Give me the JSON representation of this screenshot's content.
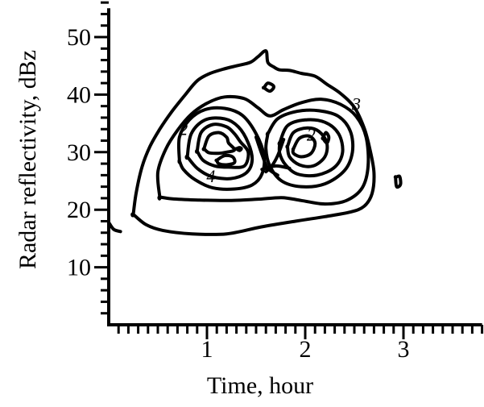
{
  "chart_data": {
    "type": "contour",
    "xlabel": "Time, hour",
    "ylabel": "Radar reflectivity, dBz",
    "xlim": [
      0,
      3.8
    ],
    "ylim": [
      0,
      55
    ],
    "x_ticks": [
      {
        "value": 1,
        "label": "1"
      },
      {
        "value": 2,
        "label": "2"
      },
      {
        "value": 3,
        "label": "3"
      }
    ],
    "y_ticks": [
      {
        "value": 10,
        "label": "10"
      },
      {
        "value": 20,
        "label": "20"
      },
      {
        "value": 30,
        "label": "30"
      },
      {
        "value": 40,
        "label": "40"
      },
      {
        "value": 50,
        "label": "50"
      }
    ],
    "x_minor_step": 0.1,
    "y_minor_step": 2,
    "contour_labels": [
      {
        "text": "2",
        "x": 0.76,
        "y": 33.0
      },
      {
        "text": "4",
        "x": 1.04,
        "y": 24.8
      },
      {
        "text": "2",
        "x": 2.06,
        "y": 32.0
      },
      {
        "text": "3",
        "x": 2.52,
        "y": 37.3
      }
    ],
    "contours": [
      {
        "name": "outer",
        "closed": true,
        "points": [
          [
            0.25,
            19.2
          ],
          [
            0.28,
            23
          ],
          [
            0.34,
            27.5
          ],
          [
            0.42,
            31
          ],
          [
            0.52,
            34
          ],
          [
            0.64,
            37
          ],
          [
            0.78,
            40
          ],
          [
            0.9,
            42.4
          ],
          [
            1.02,
            43.6
          ],
          [
            1.16,
            44.4
          ],
          [
            1.3,
            45
          ],
          [
            1.44,
            45.6
          ],
          [
            1.52,
            46.6
          ],
          [
            1.6,
            47.6
          ],
          [
            1.62,
            45.6
          ],
          [
            1.68,
            44.8
          ],
          [
            1.74,
            44.3
          ],
          [
            1.84,
            44.2
          ],
          [
            1.96,
            43.7
          ],
          [
            2.1,
            43.2
          ],
          [
            2.22,
            41.8
          ],
          [
            2.36,
            40.2
          ],
          [
            2.5,
            37.8
          ],
          [
            2.6,
            34.2
          ],
          [
            2.66,
            30.4
          ],
          [
            2.7,
            26.4
          ],
          [
            2.68,
            22.8
          ],
          [
            2.6,
            20.6
          ],
          [
            2.46,
            19.6
          ],
          [
            2.2,
            18.8
          ],
          [
            1.9,
            18
          ],
          [
            1.55,
            17
          ],
          [
            1.2,
            15.8
          ],
          [
            0.85,
            15.8
          ],
          [
            0.55,
            16.4
          ],
          [
            0.38,
            17.4
          ],
          [
            0.25,
            19.2
          ]
        ]
      },
      {
        "name": "level-2",
        "closed": true,
        "points": [
          [
            0.52,
            22.2
          ],
          [
            0.5,
            26.5
          ],
          [
            0.58,
            30.5
          ],
          [
            0.7,
            33.8
          ],
          [
            0.84,
            36.6
          ],
          [
            1.0,
            38.5
          ],
          [
            1.18,
            39.6
          ],
          [
            1.38,
            39.3
          ],
          [
            1.52,
            37.7
          ],
          [
            1.64,
            36.3
          ],
          [
            1.78,
            37.4
          ],
          [
            1.96,
            38.6
          ],
          [
            2.16,
            39.2
          ],
          [
            2.36,
            38.3
          ],
          [
            2.52,
            36.2
          ],
          [
            2.62,
            32.6
          ],
          [
            2.64,
            27.6
          ],
          [
            2.58,
            23.8
          ],
          [
            2.42,
            21.6
          ],
          [
            2.2,
            21
          ],
          [
            1.96,
            21.6
          ],
          [
            1.76,
            22.1
          ],
          [
            1.5,
            21.8
          ],
          [
            1.2,
            21.6
          ],
          [
            0.88,
            21.7
          ],
          [
            0.64,
            21.9
          ],
          [
            0.52,
            22.2
          ]
        ]
      },
      {
        "name": "left-3",
        "closed": true,
        "points": [
          [
            0.72,
            28.5
          ],
          [
            0.72,
            32.6
          ],
          [
            0.82,
            35.6
          ],
          [
            0.98,
            37.4
          ],
          [
            1.18,
            37.6
          ],
          [
            1.36,
            36.4
          ],
          [
            1.5,
            33.2
          ],
          [
            1.58,
            29.4
          ],
          [
            1.56,
            26.2
          ],
          [
            1.46,
            24.3
          ],
          [
            1.28,
            23.6
          ],
          [
            1.06,
            23.8
          ],
          [
            0.88,
            25.2
          ],
          [
            0.76,
            27
          ],
          [
            0.72,
            28.5
          ]
        ]
      },
      {
        "name": "left-4",
        "closed": true,
        "points": [
          [
            0.8,
            29.2
          ],
          [
            0.84,
            33.2
          ],
          [
            0.98,
            35.6
          ],
          [
            1.18,
            35.8
          ],
          [
            1.32,
            34.4
          ],
          [
            1.42,
            31.6
          ],
          [
            1.46,
            28.6
          ],
          [
            1.4,
            26.4
          ],
          [
            1.24,
            25.4
          ],
          [
            1.04,
            25.8
          ],
          [
            0.9,
            27.2
          ],
          [
            0.8,
            29.2
          ]
        ]
      },
      {
        "name": "left-5",
        "closed": true,
        "points": [
          [
            0.9,
            30.2
          ],
          [
            0.94,
            33.4
          ],
          [
            1.06,
            34.8
          ],
          [
            1.2,
            34.4
          ],
          [
            1.28,
            33.2
          ],
          [
            1.34,
            31.8
          ],
          [
            1.42,
            30
          ],
          [
            1.38,
            27.6
          ],
          [
            1.22,
            27.4
          ],
          [
            1.08,
            27.6
          ],
          [
            0.96,
            28.6
          ],
          [
            0.9,
            30.2
          ]
        ]
      },
      {
        "name": "left-6",
        "closed": true,
        "points": [
          [
            0.97,
            30.6
          ],
          [
            1.02,
            32.8
          ],
          [
            1.12,
            33.4
          ],
          [
            1.2,
            32.6
          ],
          [
            1.22,
            31.6
          ],
          [
            1.28,
            30.4
          ],
          [
            1.2,
            30
          ],
          [
            1.12,
            29.8
          ],
          [
            1.02,
            29.9
          ],
          [
            0.97,
            30.6
          ]
        ]
      },
      {
        "name": "left-center",
        "closed": true,
        "points": [
          [
            1.1,
            28.6
          ],
          [
            1.18,
            29.4
          ],
          [
            1.26,
            29.2
          ],
          [
            1.28,
            28.2
          ],
          [
            1.2,
            27.8
          ],
          [
            1.12,
            28
          ],
          [
            1.1,
            28.6
          ]
        ]
      },
      {
        "name": "left-spot",
        "closed": true,
        "points": [
          [
            1.3,
            30.6
          ],
          [
            1.33,
            30.8
          ],
          [
            1.35,
            30.6
          ],
          [
            1.33,
            30.3
          ],
          [
            1.3,
            30.6
          ]
        ]
      },
      {
        "name": "right-3",
        "closed": true,
        "points": [
          [
            1.62,
            33.2
          ],
          [
            1.72,
            35.8
          ],
          [
            1.92,
            37.1
          ],
          [
            2.14,
            37.2
          ],
          [
            2.34,
            36.2
          ],
          [
            2.46,
            33.6
          ],
          [
            2.48,
            30
          ],
          [
            2.4,
            26.8
          ],
          [
            2.2,
            24.5
          ],
          [
            1.96,
            24
          ],
          [
            1.76,
            25
          ],
          [
            1.64,
            27.6
          ],
          [
            1.6,
            30.6
          ],
          [
            1.62,
            33.2
          ]
        ]
      },
      {
        "name": "right-4",
        "closed": true,
        "points": [
          [
            1.74,
            31.6
          ],
          [
            1.82,
            34.6
          ],
          [
            2.0,
            35.6
          ],
          [
            2.2,
            35.2
          ],
          [
            2.34,
            33.2
          ],
          [
            2.38,
            30
          ],
          [
            2.3,
            27.4
          ],
          [
            2.12,
            26
          ],
          [
            1.92,
            26.2
          ],
          [
            1.8,
            27.8
          ],
          [
            1.74,
            29.8
          ],
          [
            1.74,
            31.6
          ]
        ]
      },
      {
        "name": "right-5",
        "closed": true,
        "points": [
          [
            1.82,
            31
          ],
          [
            1.88,
            33.4
          ],
          [
            2.02,
            34.2
          ],
          [
            2.14,
            33.6
          ],
          [
            2.22,
            31.6
          ],
          [
            2.2,
            29.2
          ],
          [
            2.08,
            27.6
          ],
          [
            1.94,
            27.8
          ],
          [
            1.84,
            29.2
          ],
          [
            1.82,
            31
          ]
        ]
      },
      {
        "name": "right-6",
        "closed": true,
        "points": [
          [
            1.88,
            30.6
          ],
          [
            1.94,
            32.4
          ],
          [
            2.04,
            32.8
          ],
          [
            2.1,
            31.6
          ],
          [
            2.06,
            29.8
          ],
          [
            1.96,
            29.2
          ],
          [
            1.88,
            29.8
          ],
          [
            1.88,
            30.6
          ]
        ]
      },
      {
        "name": "right-spot",
        "closed": true,
        "points": [
          [
            2.18,
            32.4
          ],
          [
            2.21,
            33.4
          ],
          [
            2.24,
            32.6
          ],
          [
            2.22,
            31.6
          ],
          [
            2.18,
            32.4
          ]
        ]
      },
      {
        "name": "saddle-left",
        "closed": false,
        "points": [
          [
            1.5,
            32.6
          ],
          [
            1.56,
            29.6
          ],
          [
            1.62,
            27.2
          ],
          [
            1.72,
            26
          ]
        ]
      },
      {
        "name": "saddle-right",
        "closed": false,
        "points": [
          [
            1.78,
            32.2
          ],
          [
            1.72,
            29.4
          ],
          [
            1.66,
            27.6
          ],
          [
            1.6,
            26.6
          ]
        ]
      },
      {
        "name": "saddle-low",
        "closed": false,
        "points": [
          [
            1.56,
            27
          ],
          [
            1.7,
            27.6
          ],
          [
            1.84,
            27.2
          ]
        ]
      },
      {
        "name": "top-blob",
        "closed": true,
        "points": [
          [
            1.58,
            41.2
          ],
          [
            1.62,
            42
          ],
          [
            1.68,
            41.4
          ],
          [
            1.64,
            40.6
          ],
          [
            1.58,
            41.2
          ]
        ]
      },
      {
        "name": "right-isolated",
        "closed": true,
        "points": [
          [
            2.92,
            25.6
          ],
          [
            2.96,
            25.8
          ],
          [
            2.97,
            24.4
          ],
          [
            2.93,
            24
          ],
          [
            2.92,
            25.6
          ]
        ]
      },
      {
        "name": "left-edge-stub",
        "closed": false,
        "points": [
          [
            0.0,
            17.8
          ],
          [
            0.05,
            16.6
          ],
          [
            0.12,
            16.2
          ]
        ]
      }
    ]
  }
}
